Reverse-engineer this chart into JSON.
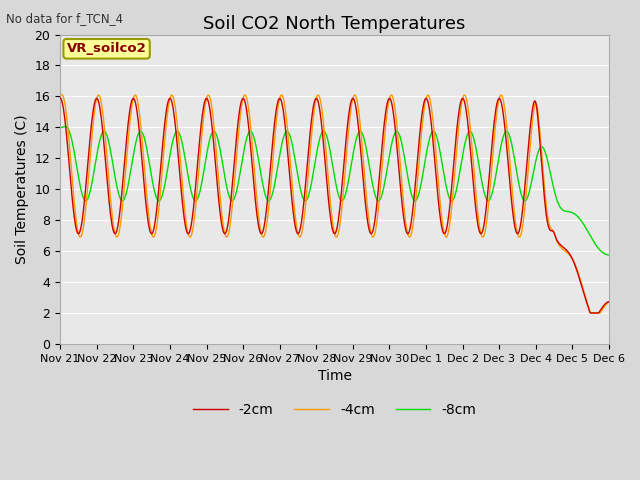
{
  "title": "Soil CO2 North Temperatures",
  "no_data_text": "No data for f_TCN_4",
  "legend_box_text": "VR_soilco2",
  "ylabel": "Soil Temperatures (C)",
  "xlabel": "Time",
  "ylim": [
    0,
    20
  ],
  "yticks": [
    0,
    2,
    4,
    6,
    8,
    10,
    12,
    14,
    16,
    18,
    20
  ],
  "xtick_labels": [
    "Nov 21",
    "Nov 22",
    "Nov 23",
    "Nov 24",
    "Nov 25",
    "Nov 26",
    "Nov 27",
    "Nov 28",
    "Nov 29",
    "Nov 30",
    "Dec 1",
    "Dec 2",
    "Dec 3",
    "Dec 4",
    "Dec 5",
    "Dec 6"
  ],
  "line_colors": [
    "#cc0000",
    "#ff9900",
    "#00dd00"
  ],
  "line_labels": [
    "-2cm",
    "-4cm",
    "-8cm"
  ],
  "background_color": "#d8d8d8",
  "plot_bg_color": "#e8e8e8",
  "grid_color": "#ffffff",
  "legend_box_bg": "#ffff99",
  "legend_box_edge": "#999900",
  "legend_box_text_color": "#880000",
  "title_fontsize": 13,
  "axis_fontsize": 10,
  "tick_fontsize": 9,
  "legend_fontsize": 10
}
